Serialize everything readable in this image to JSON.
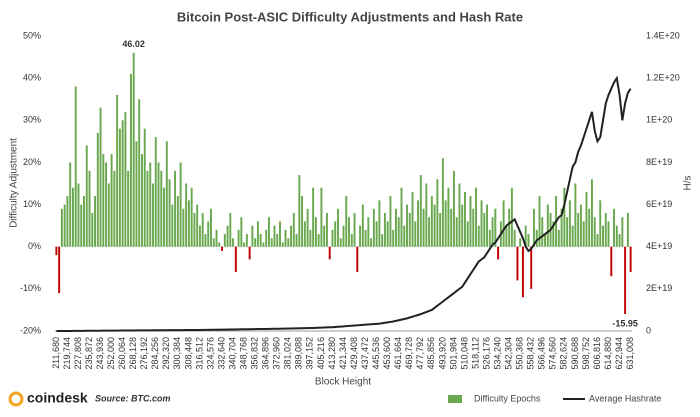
{
  "chart_data": {
    "type": "bar",
    "title": "Bitcoin Post-ASIC Difficulty Adjustments and Hash Rate",
    "x_label": "Block Height",
    "y_label": "Difficulty Adjustment",
    "y2_label": "H/s",
    "source": "Source: BTC.com",
    "brand": "coindesk",
    "ylim": [
      -20,
      50
    ],
    "yticks": [
      {
        "value": -20,
        "label": "-20%"
      },
      {
        "value": -10,
        "label": "-10%"
      },
      {
        "value": 0,
        "label": "0%"
      },
      {
        "value": 10,
        "label": "10%"
      },
      {
        "value": 20,
        "label": "20%"
      },
      {
        "value": 30,
        "label": "30%"
      },
      {
        "value": 40,
        "label": "40%"
      },
      {
        "value": 50,
        "label": "50%"
      }
    ],
    "y2lim": [
      0,
      1.4e+20
    ],
    "y2ticks": [
      0,
      {
        "value": 2e+19,
        "label": "2E+19"
      },
      {
        "value": 4e+19,
        "label": "4E+19"
      },
      {
        "value": 6e+19,
        "label": "6E+19"
      },
      {
        "value": 8e+19,
        "label": "8E+19"
      },
      {
        "value": 1e+20,
        "label": "1E+20"
      },
      {
        "value": 1.2e+20,
        "label": "1.2E+20"
      },
      {
        "value": 1.4e+20,
        "label": "1.4E+20"
      }
    ],
    "grid": false,
    "legend": "bottom",
    "negative_color": "#c00000",
    "categories": [
      "211,680",
      null,
      null,
      null,
      "219,744",
      null,
      null,
      null,
      "227,808",
      null,
      null,
      null,
      "235,872",
      null,
      null,
      null,
      "243,936",
      null,
      null,
      null,
      "252,000",
      null,
      null,
      null,
      "260,064",
      null,
      null,
      null,
      "268,128",
      null,
      null,
      null,
      "276,192",
      null,
      null,
      null,
      "284,256",
      null,
      null,
      null,
      "292,320",
      null,
      null,
      null,
      "300,384",
      null,
      null,
      null,
      "308,448",
      null,
      null,
      null,
      "316,512",
      null,
      null,
      null,
      "324,576",
      null,
      null,
      null,
      "332,640",
      null,
      null,
      null,
      "340,704",
      null,
      null,
      null,
      "348,768",
      null,
      null,
      null,
      "356,832",
      null,
      null,
      null,
      "364,896",
      null,
      null,
      null,
      "372,960",
      null,
      null,
      null,
      "381,024",
      null,
      null,
      null,
      "389,088",
      null,
      null,
      null,
      "397,152",
      null,
      null,
      null,
      "405,216",
      null,
      null,
      null,
      "413,280",
      null,
      null,
      null,
      "421,344",
      null,
      null,
      null,
      "429,408",
      null,
      null,
      null,
      "437,472",
      null,
      null,
      null,
      "445,536",
      null,
      null,
      null,
      "453,600",
      null,
      null,
      null,
      "461,664",
      null,
      null,
      null,
      "469,728",
      null,
      null,
      null,
      "477,792",
      null,
      null,
      null,
      "485,856",
      null,
      null,
      null,
      "493,920",
      null,
      null,
      null,
      "501,984",
      null,
      null,
      null,
      "510,048",
      null,
      null,
      null,
      "518,112",
      null,
      null,
      null,
      "526,176",
      null,
      null,
      null,
      "534,240",
      null,
      null,
      null,
      "542,304",
      null,
      null,
      null,
      "550,368",
      null,
      null,
      null,
      "558,432",
      null,
      null,
      null,
      "566,496",
      null,
      null,
      null,
      "574,560",
      null,
      null,
      null,
      "582,624",
      null,
      null,
      null,
      "590,688",
      null,
      null,
      null,
      "598,752",
      null,
      null,
      null,
      "606,816",
      null,
      null,
      null,
      "614,880",
      null,
      null,
      null,
      "622,944",
      null,
      null,
      null,
      "631,008"
    ],
    "series": [
      {
        "name": "Difficulty Epochs",
        "color": "#6aa84f",
        "values": [
          -2,
          -11,
          9,
          10,
          12,
          20,
          14,
          38,
          15,
          10,
          12,
          24,
          18,
          8,
          12,
          27,
          33,
          22,
          20,
          15,
          22,
          18,
          36,
          28,
          30,
          32,
          18,
          41,
          46.02,
          25,
          35,
          22,
          28,
          18,
          20,
          15,
          26,
          20,
          18,
          14,
          25,
          16,
          10,
          18,
          12,
          20,
          9,
          15,
          11,
          14,
          8,
          10,
          5,
          8,
          3,
          6,
          9,
          2,
          4,
          1,
          -1,
          3,
          5,
          8,
          2,
          -6,
          4,
          7,
          1,
          3,
          -3,
          5,
          2,
          6,
          3,
          1,
          4,
          7,
          2,
          5,
          3,
          6,
          1,
          4,
          2,
          5,
          8,
          3,
          17,
          12,
          6,
          9,
          4,
          14,
          7,
          3,
          14,
          5,
          8,
          -3,
          4,
          6,
          9,
          2,
          5,
          12,
          7,
          3,
          8,
          -6,
          5,
          10,
          4,
          7,
          2,
          9,
          6,
          11,
          3,
          8,
          6,
          12,
          4,
          9,
          7,
          14,
          5,
          10,
          8,
          13,
          6,
          11,
          17,
          9,
          15,
          7,
          12,
          10,
          16,
          8,
          21,
          11,
          14,
          9,
          18,
          7,
          15,
          10,
          13,
          6,
          12,
          9,
          14,
          5,
          11,
          8,
          10,
          4,
          7,
          9,
          -3,
          6,
          11,
          5,
          9,
          14,
          4,
          -8,
          2,
          -12,
          5,
          3,
          -10,
          9,
          4,
          12,
          7,
          3,
          10,
          8,
          6,
          12,
          4,
          9,
          14,
          7,
          11,
          5,
          15,
          8,
          10,
          6,
          13,
          9,
          16,
          7,
          3,
          11,
          5,
          8,
          6,
          -7,
          9,
          5,
          3,
          7,
          -15.95,
          8,
          -6
        ],
        "value_labels": [
          null,
          null,
          null,
          null,
          null,
          null,
          null,
          null,
          null,
          null,
          null,
          null,
          null,
          null,
          null,
          null,
          null,
          null,
          null,
          null,
          null,
          null,
          null,
          null,
          null,
          null,
          null,
          null,
          "46.02",
          null,
          null,
          null,
          null,
          null,
          null,
          null,
          null,
          null,
          null,
          null,
          null,
          null,
          null,
          null,
          null,
          null,
          null,
          null,
          null,
          null,
          null,
          null,
          null,
          null,
          null,
          null,
          null,
          null,
          null,
          null,
          null,
          null,
          null,
          null,
          null,
          null,
          null,
          null,
          null,
          null,
          null,
          null,
          null,
          null,
          null,
          null,
          null,
          null,
          null,
          null,
          null,
          null,
          null,
          null,
          null,
          null,
          null,
          null,
          null,
          null,
          null,
          null,
          null,
          null,
          null,
          null,
          null,
          null,
          null,
          null,
          null,
          null,
          null,
          null,
          null,
          null,
          null,
          null,
          null,
          null,
          null,
          null,
          null,
          null,
          null,
          null,
          null,
          null,
          null,
          null,
          null,
          null,
          null,
          null,
          null,
          null,
          null,
          null,
          null,
          null,
          null,
          null,
          null,
          null,
          null,
          null,
          null,
          null,
          null,
          null,
          null,
          null,
          null,
          null,
          null,
          null,
          null,
          null,
          null,
          null,
          null,
          null,
          null,
          null,
          null,
          null,
          null,
          null,
          null,
          null,
          null,
          null,
          null,
          null,
          null,
          null,
          null,
          null,
          null,
          null,
          null,
          null,
          null,
          null,
          null,
          null,
          null,
          null,
          null,
          null,
          null,
          null,
          null,
          null,
          null,
          null,
          null,
          null,
          null,
          null,
          null,
          null,
          null,
          null,
          null,
          null,
          null,
          null,
          null,
          null,
          null,
          null,
          null,
          null,
          null,
          null,
          "-15.95",
          null,
          null
        ]
      },
      {
        "name": "Average Hashrate",
        "color": "#222222",
        "type": "line",
        "axis": "y2",
        "values": [
          1e+16,
          1e+16,
          2e+16,
          2e+16,
          3e+16,
          3e+16,
          4e+16,
          5e+16,
          6e+16,
          7e+16,
          8e+16,
          9e+16,
          1e+17,
          1.1e+17,
          1.2e+17,
          1.3e+17,
          1.4e+17,
          1.5e+17,
          1.6e+17,
          1.7e+17,
          1.8e+17,
          1.9e+17,
          2e+17,
          2.1e+17,
          2.2e+17,
          2.3e+17,
          2.4e+17,
          2.5e+17,
          2.6e+17,
          2.7e+17,
          2.8e+17,
          2.9e+17,
          3e+17,
          3.1e+17,
          3.2e+17,
          3.3e+17,
          3.4e+17,
          3.5e+17,
          3.6e+17,
          3.7e+17,
          3.8e+17,
          3.9e+17,
          4e+17,
          4.1e+17,
          4.2e+17,
          4.3e+17,
          4.4e+17,
          4.5e+17,
          4.6e+17,
          4.7e+17,
          4.8e+17,
          4.9e+17,
          5e+17,
          5.2e+17,
          5.4e+17,
          5.6e+17,
          5.8e+17,
          6e+17,
          6.2e+17,
          6.4e+17,
          6.6e+17,
          6.8e+17,
          7e+17,
          7.2e+17,
          7.4e+17,
          7.6e+17,
          7.8e+17,
          8e+17,
          8.2e+17,
          8.4e+17,
          8.6e+17,
          8.8e+17,
          9e+17,
          9.2e+17,
          9.4e+17,
          9.6e+17,
          9.8e+17,
          1e+18,
          1.02e+18,
          1.04e+18,
          1.06e+18,
          1.08e+18,
          1.1e+18,
          1.13e+18,
          1.16e+18,
          1.19e+18,
          1.22e+18,
          1.25e+18,
          1.28e+18,
          1.31e+18,
          1.34e+18,
          1.37e+18,
          1.4e+18,
          1.45e+18,
          1.5e+18,
          1.55e+18,
          1.6e+18,
          1.65e+18,
          1.7e+18,
          1.75e+18,
          1.8e+18,
          1.9e+18,
          2e+18,
          2.1e+18,
          2.2e+18,
          2.3e+18,
          2.4e+18,
          2.5e+18,
          2.6e+18,
          2.7e+18,
          2.8e+18,
          2.9e+18,
          3e+18,
          3.1e+18,
          3.2e+18,
          3.3e+18,
          3.4e+18,
          3.5e+18,
          3.7e+18,
          3.9e+18,
          4.1e+18,
          4.3e+18,
          4.5e+18,
          4.8e+18,
          5.1e+18,
          5.4e+18,
          5.7e+18,
          6e+18,
          6.4e+18,
          6.8e+18,
          7.2e+18,
          7.6e+18,
          8e+18,
          8.5e+18,
          9e+18,
          9.5e+18,
          1e+19,
          1.1e+19,
          1.2e+19,
          1.3e+19,
          1.4e+19,
          1.5e+19,
          1.6e+19,
          1.7e+19,
          1.8e+19,
          1.9e+19,
          2e+19,
          2.1e+19,
          2.3e+19,
          2.5e+19,
          2.7e+19,
          2.9e+19,
          3.1e+19,
          3.3e+19,
          3.4e+19,
          3.5e+19,
          3.7e+19,
          3.9e+19,
          4.1e+19,
          4.2e+19,
          4.4e+19,
          4.6e+19,
          4.8e+19,
          5e+19,
          5.1e+19,
          5.2e+19,
          5.3e+19,
          5e+19,
          4.7e+19,
          4.4e+19,
          4e+19,
          3.8e+19,
          3.9e+19,
          4.1e+19,
          4.3e+19,
          4.4e+19,
          4.5e+19,
          4.6e+19,
          4.7e+19,
          4.8e+19,
          5e+19,
          5.2e+19,
          5.4e+19,
          5.5e+19,
          6e+19,
          6.6e+19,
          7.2e+19,
          7.8e+19,
          8e+19,
          8.5e+19,
          8.8e+19,
          9.2e+19,
          9.6e+19,
          1e+20,
          1.04e+20,
          9.5e+19,
          9e+19,
          9.2e+19,
          1e+20,
          1.08e+20,
          1.12e+20,
          1.15e+20,
          1.18e+20,
          1.2e+20,
          1.12e+20,
          1e+20,
          1.08e+20,
          1.13e+20,
          1.15e+20
        ]
      }
    ]
  }
}
